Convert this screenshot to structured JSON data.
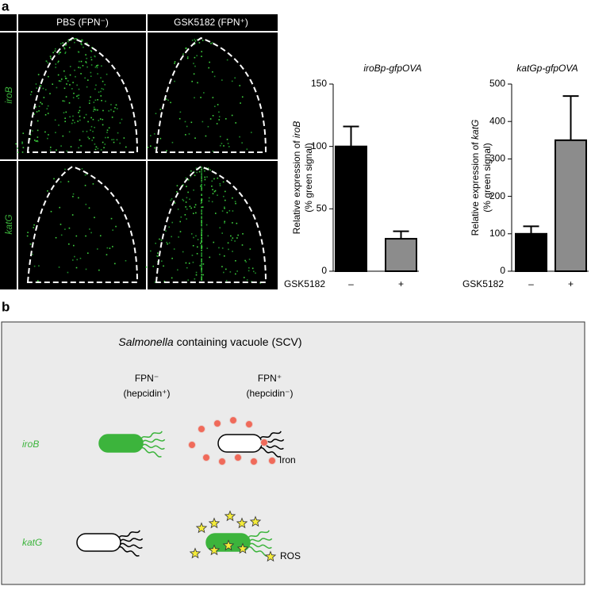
{
  "panel_a": {
    "label": "a",
    "columns": [
      "PBS (FPN⁻)",
      "GSK5182 (FPN⁺)"
    ],
    "rows": [
      "iroB",
      "katG"
    ]
  },
  "chart_data": [
    {
      "type": "bar",
      "title": "iroBp-gfpOVA",
      "ylabel": {
        "prefix": "Relative expression of ",
        "gene": "iroB",
        "second_line": "(% green signal)"
      },
      "xlabel": "GSK5182",
      "categories": [
        "–",
        "+"
      ],
      "values": [
        100,
        26
      ],
      "errors": [
        16,
        6
      ],
      "colors": [
        "#000000",
        "#8c8c8c"
      ],
      "ylim": [
        0,
        150
      ],
      "yticks": [
        0,
        50,
        100,
        150
      ]
    },
    {
      "type": "bar",
      "title": "katGp-gfpOVA",
      "ylabel": {
        "prefix": "Relative expression of ",
        "gene": "katG",
        "second_line": "(% green signal)"
      },
      "xlabel": "GSK5182",
      "categories": [
        "–",
        "+"
      ],
      "values": [
        100,
        350
      ],
      "errors": [
        20,
        118
      ],
      "colors": [
        "#000000",
        "#8c8c8c"
      ],
      "ylim": [
        0,
        500
      ],
      "yticks": [
        0,
        100,
        200,
        300,
        400,
        500
      ]
    }
  ],
  "panel_b": {
    "label": "b",
    "title_italic": "Salmonella",
    "title_rest": "containing vacuole (SCV)",
    "columns": [
      {
        "name": "FPN⁻",
        "note": "(hepcidin⁺)"
      },
      {
        "name": "FPN⁺",
        "note": "(hepcidin⁻)"
      }
    ],
    "rows": [
      "iroB",
      "katG"
    ],
    "legend": [
      "Iron",
      "ROS"
    ]
  }
}
